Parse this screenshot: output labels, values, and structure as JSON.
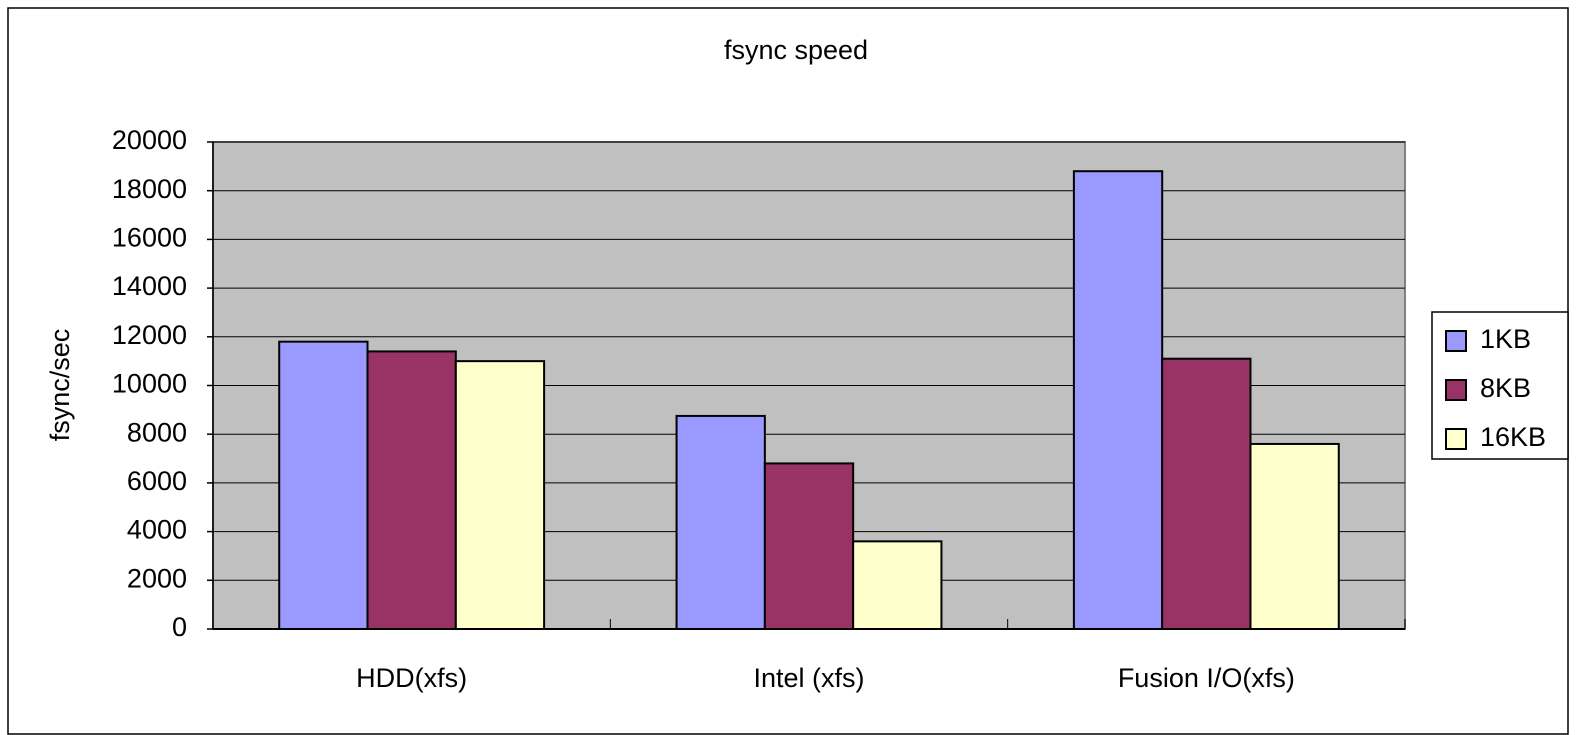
{
  "chart_data": {
    "type": "bar",
    "title": "fsync speed",
    "ylabel": "fsync/sec",
    "categories": [
      "HDD(xfs)",
      "Intel (xfs)",
      "Fusion I/O(xfs)"
    ],
    "series": [
      {
        "name": "1KB",
        "color": "#9999ff",
        "values": [
          11800,
          8750,
          18800
        ]
      },
      {
        "name": "8KB",
        "color": "#993366",
        "values": [
          11400,
          6800,
          11100
        ]
      },
      {
        "name": "16KB",
        "color": "#ffffcc",
        "values": [
          11000,
          3600,
          7600
        ]
      }
    ],
    "ylim": [
      0,
      20000
    ],
    "yticks": [
      0,
      2000,
      4000,
      6000,
      8000,
      10000,
      12000,
      14000,
      16000,
      18000,
      20000
    ],
    "grid": true,
    "legend": "right",
    "plot_background": "#c0c0c0"
  }
}
